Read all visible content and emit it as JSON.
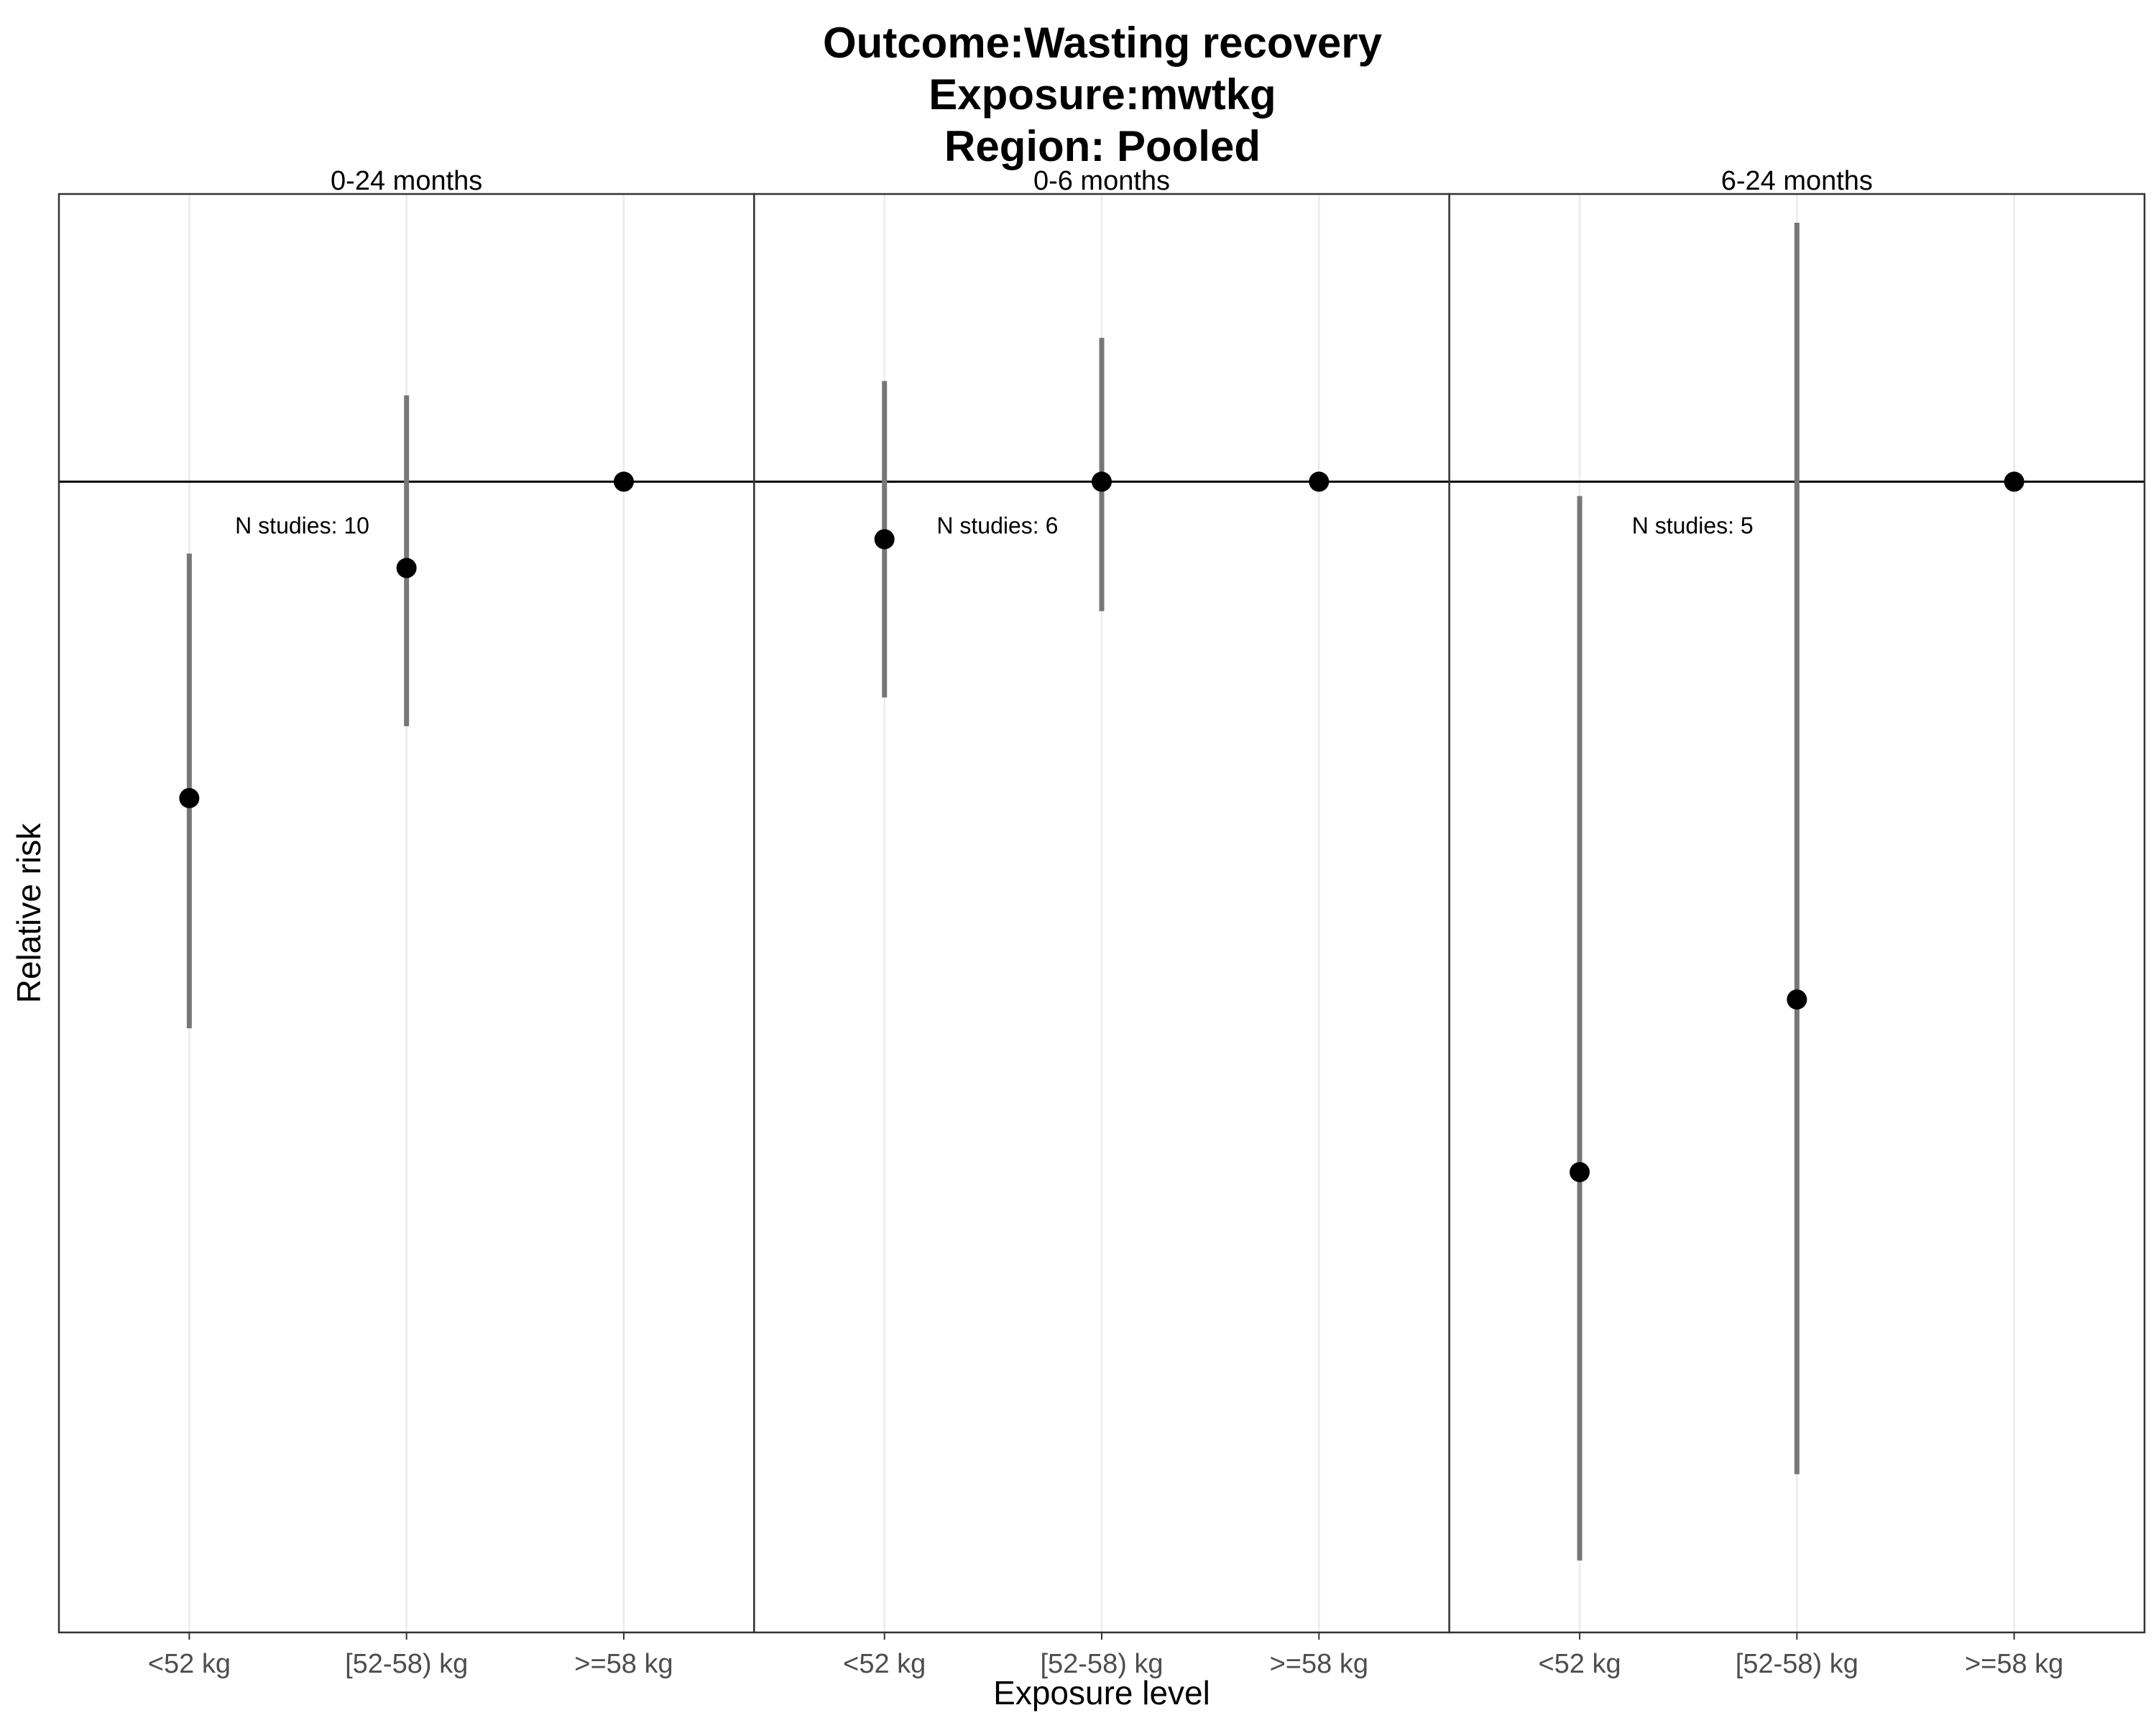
{
  "chart_data": {
    "type": "scatter",
    "title_lines": [
      "Outcome:Wasting recovery",
      "Exposure:mwtkg",
      "Region: Pooled"
    ],
    "xlabel": "Exposure level",
    "ylabel": "Relative risk",
    "categories": [
      "<52 kg",
      "[52-58) kg",
      ">=58 kg"
    ],
    "reference_line": 1.0,
    "ylim": [
      0.2,
      1.2
    ],
    "y_axis_ticks_shown": false,
    "grid": true,
    "point_color": "#000000",
    "ci_color": "#777777",
    "panels": [
      {
        "strip": "0-24 months",
        "annotation": "N studies: 10",
        "estimates": [
          0.78,
          0.94,
          1.0
        ],
        "ci_lower": [
          0.62,
          0.83,
          null
        ],
        "ci_upper": [
          0.95,
          1.06,
          null
        ]
      },
      {
        "strip": "0-6 months",
        "annotation": "N studies: 6",
        "estimates": [
          0.96,
          1.0,
          1.0
        ],
        "ci_lower": [
          0.85,
          0.91,
          null
        ],
        "ci_upper": [
          1.07,
          1.1,
          null
        ]
      },
      {
        "strip": "6-24 months",
        "annotation": "N studies: 5",
        "estimates": [
          0.52,
          0.64,
          1.0
        ],
        "ci_lower": [
          0.25,
          0.31,
          null
        ],
        "ci_upper": [
          0.99,
          1.18,
          null
        ]
      }
    ]
  }
}
